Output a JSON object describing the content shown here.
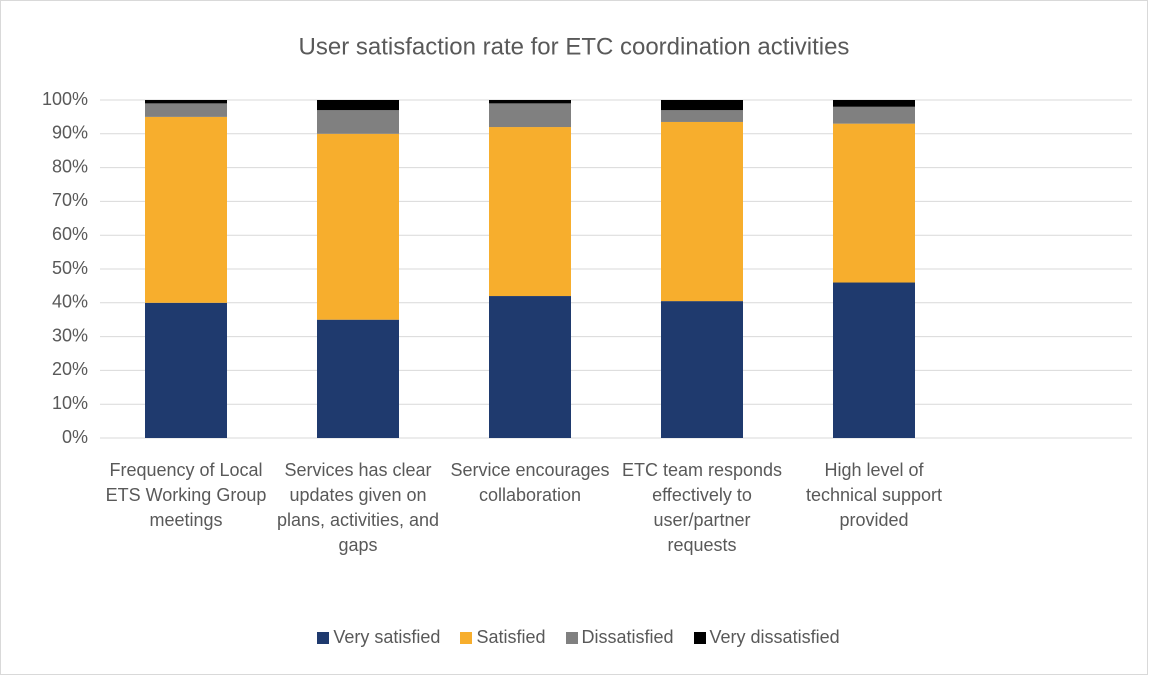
{
  "chart_data": {
    "type": "bar",
    "stacked": true,
    "title": "User satisfaction rate for ETC coordination activities",
    "categories": [
      "Frequency of Local ETS Working Group meetings",
      "Services has clear updates given on plans, activities, and gaps",
      "Service encourages collaboration",
      "ETC team responds effectively to user/partner requests",
      "High level of technical support provided",
      null
    ],
    "series": [
      {
        "name": "Very satisfied",
        "color": "#1f3a6e",
        "values": [
          40,
          35,
          42,
          40.5,
          46,
          null
        ]
      },
      {
        "name": "Satisfied",
        "color": "#f7ae2d",
        "values": [
          55,
          55,
          50,
          53,
          47,
          null
        ]
      },
      {
        "name": "Dissatisfied",
        "color": "#808080",
        "values": [
          4,
          7,
          7,
          3.5,
          5,
          null
        ]
      },
      {
        "name": "Very dissatisfied",
        "color": "#000000",
        "values": [
          1,
          3,
          1,
          3,
          2,
          null
        ]
      }
    ],
    "ylim": [
      0,
      100
    ],
    "yticks": [
      {
        "value": 0,
        "label": "0%"
      },
      {
        "value": 10,
        "label": "10%"
      },
      {
        "value": 20,
        "label": "20%"
      },
      {
        "value": 30,
        "label": "30%"
      },
      {
        "value": 40,
        "label": "40%"
      },
      {
        "value": 50,
        "label": "50%"
      },
      {
        "value": 60,
        "label": "60%"
      },
      {
        "value": 70,
        "label": "70%"
      },
      {
        "value": 80,
        "label": "80%"
      },
      {
        "value": 90,
        "label": "90%"
      },
      {
        "value": 100,
        "label": "100%"
      }
    ],
    "grid": true,
    "legend": "bottom"
  }
}
